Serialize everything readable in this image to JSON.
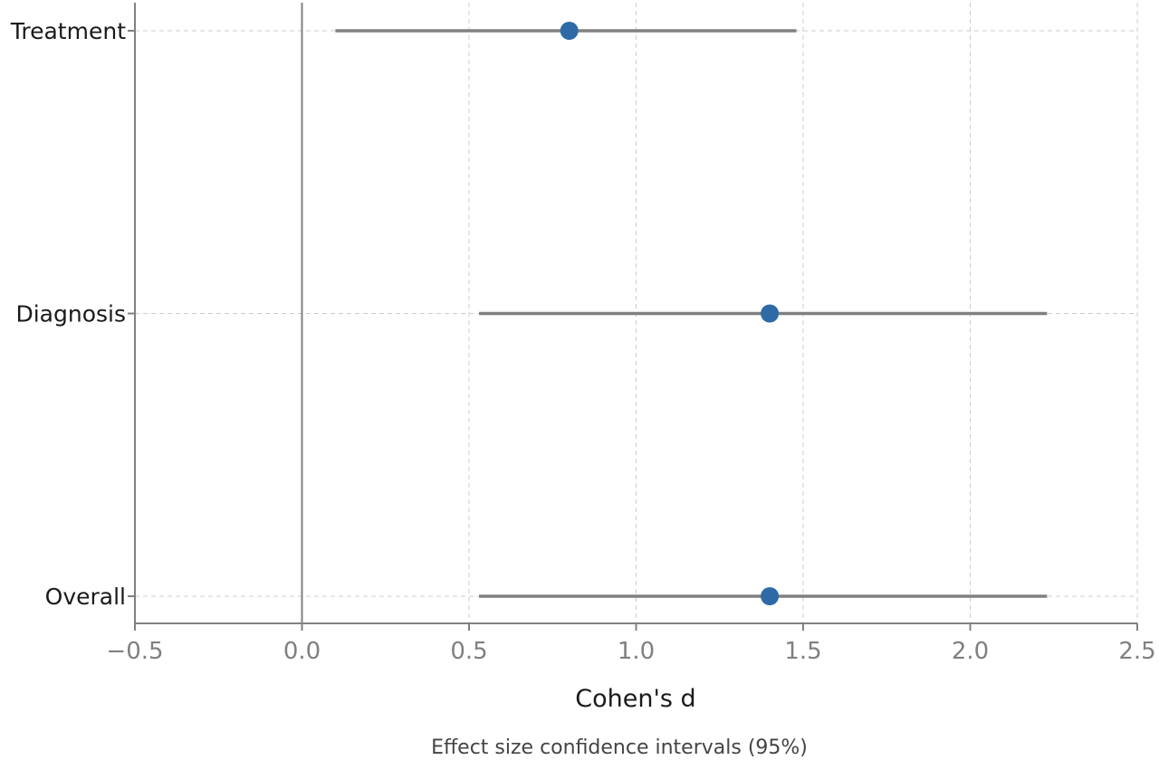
{
  "colors": {
    "point": "#2e6aa6",
    "interval": "#808080",
    "grid": "#cccccc",
    "axis": "#808080"
  },
  "caption": "Effect size confidence intervals (95%)",
  "chart_data": {
    "type": "forest",
    "title": "",
    "xlabel": "Cohen's d",
    "ylabel": "",
    "xlim": [
      -0.5,
      2.5
    ],
    "xticks": [
      -0.5,
      0.0,
      0.5,
      1.0,
      1.5,
      2.0,
      2.5
    ],
    "xtick_labels": [
      "−0.5",
      "0.0",
      "0.5",
      "1.0",
      "1.5",
      "2.0",
      "2.5"
    ],
    "categories": [
      "Treatment",
      "Diagnosis",
      "Overall"
    ],
    "estimates": [
      0.8,
      1.4,
      1.4
    ],
    "ci_lower": [
      0.1,
      0.53,
      0.53
    ],
    "ci_upper": [
      1.48,
      2.23,
      2.23
    ],
    "reference_line": 0.0,
    "grid": true
  }
}
